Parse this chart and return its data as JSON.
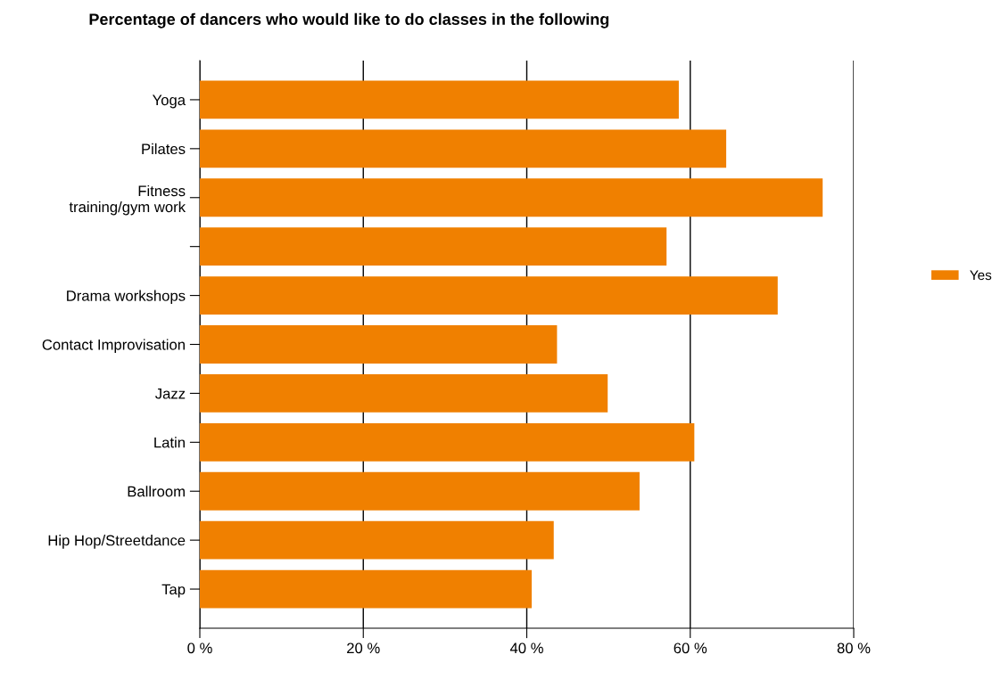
{
  "chart_data": {
    "type": "bar",
    "orientation": "horizontal",
    "title": "Percentage of dancers who would like to do classes in the following",
    "categories": [
      "Yoga",
      "Pilates",
      "Fitness\ntraining/gym work",
      null,
      "Drama workshops",
      "Contact Improvisation",
      "Jazz",
      "Latin",
      "Ballroom",
      "Hip Hop/Streetdance",
      "Tap"
    ],
    "series": [
      {
        "name": "Yes",
        "color": "#f08000",
        "values": [
          58.6,
          64.4,
          76.2,
          57.1,
          70.7,
          43.7,
          49.9,
          60.5,
          53.8,
          43.3,
          40.6
        ]
      }
    ],
    "xlim": [
      0,
      80
    ],
    "xticks": [
      {
        "value": 0,
        "label": "0 %"
      },
      {
        "value": 20,
        "label": "20 %"
      },
      {
        "value": 40,
        "label": "40 %"
      },
      {
        "value": 60,
        "label": "60 %"
      },
      {
        "value": 80,
        "label": "80 %"
      }
    ],
    "grid": "x",
    "legend": "right"
  }
}
